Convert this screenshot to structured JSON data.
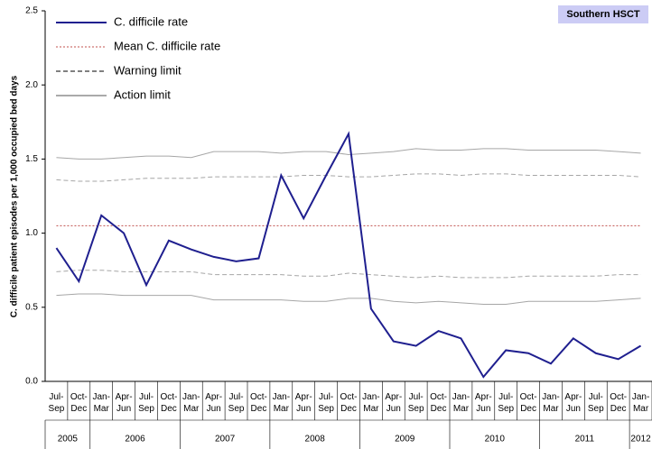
{
  "chart_data": {
    "type": "line",
    "badge": "Southern HSCT",
    "y_label": "C. difficile patient episodes per 1,000 occupied bed days",
    "categories": [
      "Jul-Sep",
      "Oct-Dec",
      "Jan-Mar",
      "Apr-Jun",
      "Jul-Sep",
      "Oct-Dec",
      "Jan-Mar",
      "Apr-Jun",
      "Jul-Sep",
      "Oct-Dec",
      "Jan-Mar",
      "Apr-Jun",
      "Jul-Sep",
      "Oct-Dec",
      "Jan-Mar",
      "Apr-Jun",
      "Jul-Sep",
      "Oct-Dec",
      "Jan-Mar",
      "Apr-Jun",
      "Jul-Sep",
      "Oct-Dec",
      "Jan-Mar",
      "Apr-Jun",
      "Jul-Sep",
      "Oct-Dec",
      "Jan-Mar"
    ],
    "x_groups": [
      {
        "label": "2005",
        "count": 2
      },
      {
        "label": "2006",
        "count": 4
      },
      {
        "label": "2007",
        "count": 4
      },
      {
        "label": "2008",
        "count": 4
      },
      {
        "label": "2009",
        "count": 4
      },
      {
        "label": "2010",
        "count": 4
      },
      {
        "label": "2011",
        "count": 4
      },
      {
        "label": "2012",
        "count": 1
      }
    ],
    "ylim": [
      0,
      2.5
    ],
    "yticks": [
      {
        "value": 0,
        "label": "0.0"
      },
      {
        "value": 0.5,
        "label": "0.5"
      },
      {
        "value": 1,
        "label": "1.0"
      },
      {
        "value": 1.5,
        "label": "1.5"
      },
      {
        "value": 2,
        "label": "2.0"
      },
      {
        "value": 2.5,
        "label": "2.5"
      }
    ],
    "series": [
      {
        "name": "C. difficile rate",
        "color": "#1f1f8f",
        "dash": "solid",
        "width": 2,
        "values": [
          0.9,
          0.675,
          1.12,
          1.0,
          0.65,
          0.95,
          0.89,
          0.84,
          0.81,
          0.83,
          1.39,
          1.1,
          1.39,
          1.67,
          0.49,
          0.27,
          0.24,
          0.34,
          0.29,
          0.03,
          0.21,
          0.19,
          0.12,
          0.29,
          0.19,
          0.15,
          0.24
        ]
      },
      {
        "name": "Mean C. difficile rate",
        "color": "#c0504d",
        "dash": "dotted",
        "width": 1,
        "values": [
          1.05,
          1.05,
          1.05,
          1.05,
          1.05,
          1.05,
          1.05,
          1.05,
          1.05,
          1.05,
          1.05,
          1.05,
          1.05,
          1.05,
          1.05,
          1.05,
          1.05,
          1.05,
          1.05,
          1.05,
          1.05,
          1.05,
          1.05,
          1.05,
          1.05,
          1.05,
          1.05
        ]
      },
      {
        "name": "Warning limit",
        "color": "#a6a6a6",
        "dash": "dashed",
        "width": 1,
        "upper": [
          1.36,
          1.35,
          1.35,
          1.36,
          1.37,
          1.37,
          1.37,
          1.38,
          1.38,
          1.38,
          1.38,
          1.39,
          1.39,
          1.38,
          1.38,
          1.39,
          1.4,
          1.4,
          1.39,
          1.4,
          1.4,
          1.39,
          1.39,
          1.39,
          1.39,
          1.39,
          1.38
        ],
        "lower": [
          0.74,
          0.75,
          0.75,
          0.74,
          0.74,
          0.74,
          0.74,
          0.72,
          0.72,
          0.72,
          0.72,
          0.71,
          0.71,
          0.73,
          0.72,
          0.71,
          0.7,
          0.71,
          0.7,
          0.7,
          0.7,
          0.71,
          0.71,
          0.71,
          0.71,
          0.72,
          0.72
        ]
      },
      {
        "name": "Action limit",
        "color": "#a6a6a6",
        "dash": "solid",
        "width": 1,
        "upper": [
          1.51,
          1.5,
          1.5,
          1.51,
          1.52,
          1.52,
          1.51,
          1.55,
          1.55,
          1.55,
          1.54,
          1.55,
          1.55,
          1.53,
          1.54,
          1.55,
          1.57,
          1.56,
          1.56,
          1.57,
          1.57,
          1.56,
          1.56,
          1.56,
          1.56,
          1.55,
          1.54
        ],
        "lower": [
          0.58,
          0.59,
          0.59,
          0.58,
          0.58,
          0.58,
          0.58,
          0.55,
          0.55,
          0.55,
          0.55,
          0.54,
          0.54,
          0.56,
          0.56,
          0.54,
          0.53,
          0.54,
          0.53,
          0.52,
          0.52,
          0.54,
          0.54,
          0.54,
          0.54,
          0.55,
          0.56
        ]
      }
    ]
  }
}
